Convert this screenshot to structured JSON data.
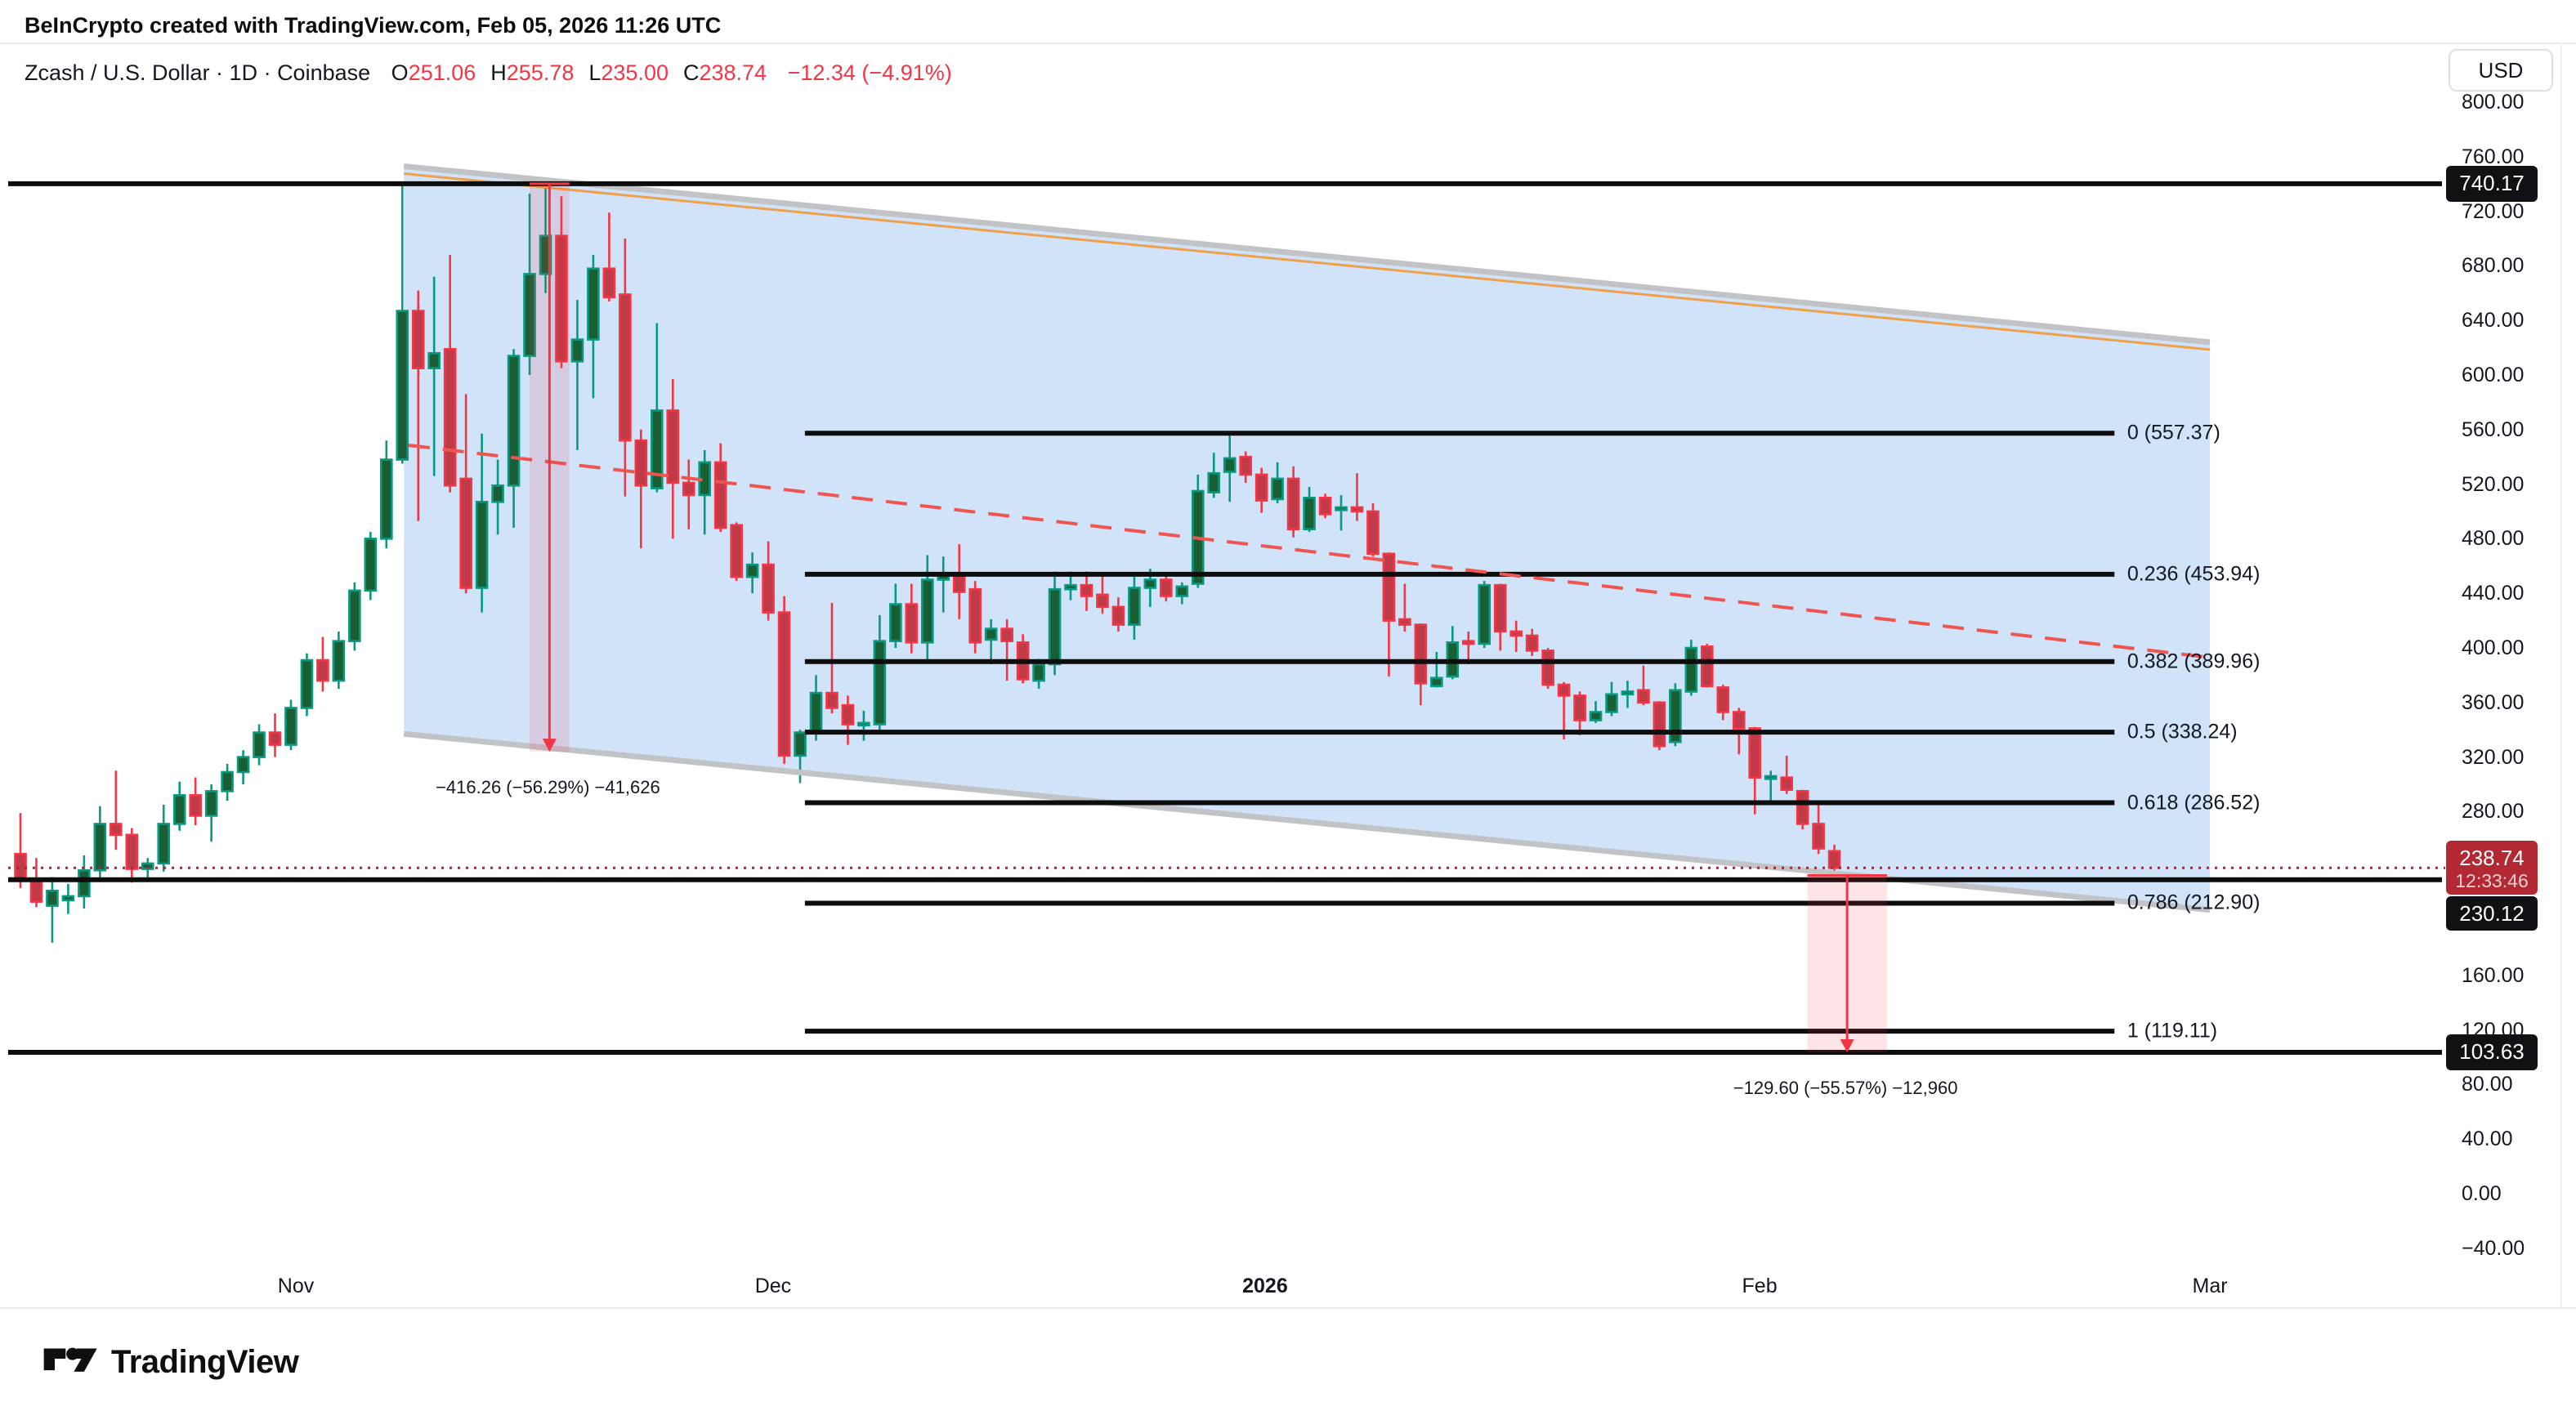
{
  "header": {
    "attribution": "BeInCrypto created with TradingView.com, Feb 05, 2026 11:26 UTC"
  },
  "legend": {
    "symbol_line": "Zcash / U.S. Dollar · 1D · Coinbase",
    "ohlc": [
      {
        "key": "O",
        "value": "251.06"
      },
      {
        "key": "H",
        "value": "255.78"
      },
      {
        "key": "L",
        "value": "235.00"
      },
      {
        "key": "C",
        "value": "238.74"
      }
    ],
    "change": "−12.34 (−4.91%)"
  },
  "toolbar": {
    "currency_label": "USD"
  },
  "price_scale": {
    "ticks": [
      {
        "value": 800,
        "label": "800.00"
      },
      {
        "value": 760,
        "label": "760.00"
      },
      {
        "value": 720,
        "label": "720.00"
      },
      {
        "value": 680,
        "label": "680.00"
      },
      {
        "value": 640,
        "label": "640.00"
      },
      {
        "value": 600,
        "label": "600.00"
      },
      {
        "value": 560,
        "label": "560.00"
      },
      {
        "value": 520,
        "label": "520.00"
      },
      {
        "value": 480,
        "label": "480.00"
      },
      {
        "value": 440,
        "label": "440.00"
      },
      {
        "value": 400,
        "label": "400.00"
      },
      {
        "value": 360,
        "label": "360.00"
      },
      {
        "value": 320,
        "label": "320.00"
      },
      {
        "value": 280,
        "label": "280.00"
      },
      {
        "value": 160,
        "label": "160.00"
      },
      {
        "value": 120,
        "label": "120.00"
      },
      {
        "value": 80,
        "label": "80.00"
      },
      {
        "value": 40,
        "label": "40.00"
      },
      {
        "value": 0,
        "label": "0.00"
      },
      {
        "value": -40,
        "label": "−40.00"
      }
    ],
    "badges": [
      {
        "text": "740.17",
        "price": 740.17,
        "bg": "#101114",
        "height": 44
      },
      {
        "text": "238.74",
        "sub": "12:33:46",
        "price": 238.74,
        "bg": "#b22833",
        "height": 66
      },
      {
        "text": "230.12",
        "price": 230.12,
        "bg": "#101114",
        "height": 42,
        "stack_below": "238.74"
      },
      {
        "text": "103.63",
        "price": 103.63,
        "bg": "#101114",
        "height": 44
      }
    ]
  },
  "time_scale": {
    "labels": [
      {
        "text": "Nov",
        "index": 17.31,
        "bold": false
      },
      {
        "text": "Dec",
        "index": 47.3,
        "bold": false
      },
      {
        "text": "2026",
        "index": 78.22,
        "bold": true
      },
      {
        "text": "Feb",
        "index": 109.3,
        "bold": false
      },
      {
        "text": "Mar",
        "index": 137.6,
        "bold": false
      }
    ]
  },
  "footer": {
    "logo_text": "TradingView"
  },
  "chart_data": {
    "type": "candlestick",
    "title": "Zcash / U.S. Dollar · 1D · Coinbase",
    "ylabel": "USD",
    "ylim": [
      -47,
      839
    ],
    "grid": false,
    "legend_position": "top-left",
    "first_candle_date": "2025-10-15",
    "last_candle_date": "2026-02-05",
    "last_candle_ohlc": {
      "open": 251.06,
      "high": 255.78,
      "low": 235.0,
      "close": 238.74
    },
    "colors": {
      "up_body": "#1a5e33",
      "up_border": "#089981",
      "down_body": "#c13a48",
      "down_border": "#f23645",
      "channel_fill": "rgba(164,199,244,0.50)",
      "channel_border": "#c2c3c7",
      "channel_accent": "#efa04b",
      "trendline": "#f0544f",
      "measure_fill": "rgba(242,54,69,0.13)",
      "measure_arrow": "#f23645",
      "level_line": "#0d0d0d",
      "price_line": "#a1293a"
    },
    "candles": [
      [
        249,
        279,
        224,
        230
      ],
      [
        230,
        246,
        210,
        214
      ],
      [
        211,
        232,
        184,
        222
      ],
      [
        215,
        227,
        205,
        218
      ],
      [
        218,
        248,
        209,
        237
      ],
      [
        237,
        284,
        231,
        271
      ],
      [
        271,
        310,
        252,
        263
      ],
      [
        263,
        268,
        228,
        238
      ],
      [
        238,
        246,
        230,
        242
      ],
      [
        242,
        285,
        236,
        271
      ],
      [
        271,
        302,
        266,
        292
      ],
      [
        292,
        305,
        270,
        277
      ],
      [
        277,
        300,
        258,
        295
      ],
      [
        295,
        315,
        288,
        309
      ],
      [
        309,
        325,
        300,
        320
      ],
      [
        320,
        344,
        314,
        338
      ],
      [
        338,
        352,
        320,
        329
      ],
      [
        329,
        362,
        325,
        356
      ],
      [
        356,
        396,
        350,
        391
      ],
      [
        391,
        408,
        368,
        376
      ],
      [
        376,
        412,
        370,
        405
      ],
      [
        405,
        448,
        398,
        442
      ],
      [
        442,
        485,
        435,
        480
      ],
      [
        480,
        552,
        473,
        538
      ],
      [
        538,
        741,
        535,
        647
      ],
      [
        647,
        662,
        493,
        605
      ],
      [
        605,
        672,
        526,
        616
      ],
      [
        619,
        688,
        514,
        519
      ],
      [
        524,
        586,
        440,
        444
      ],
      [
        444,
        557,
        426,
        507
      ],
      [
        507,
        538,
        483,
        519
      ],
      [
        519,
        619,
        488,
        614
      ],
      [
        614,
        733,
        600,
        674
      ],
      [
        674,
        740,
        660,
        702
      ],
      [
        702,
        731,
        605,
        610
      ],
      [
        610,
        655,
        545,
        626
      ],
      [
        626,
        688,
        583,
        678
      ],
      [
        678,
        719,
        654,
        657
      ],
      [
        659,
        700,
        511,
        552
      ],
      [
        552,
        560,
        473,
        519
      ],
      [
        517,
        638,
        514,
        574
      ],
      [
        574,
        597,
        480,
        521
      ],
      [
        521,
        538,
        487,
        512
      ],
      [
        512,
        545,
        483,
        536
      ],
      [
        536,
        550,
        485,
        488
      ],
      [
        490,
        492,
        449,
        452
      ],
      [
        452,
        470,
        440,
        461
      ],
      [
        461,
        478,
        420,
        426
      ],
      [
        426,
        438,
        315,
        321
      ],
      [
        321,
        340,
        301,
        338
      ],
      [
        338,
        380,
        332,
        367
      ],
      [
        367,
        433,
        352,
        356
      ],
      [
        358,
        365,
        329,
        344
      ],
      [
        344,
        354,
        332,
        345
      ],
      [
        344,
        424,
        340,
        405
      ],
      [
        405,
        447,
        400,
        432
      ],
      [
        432,
        447,
        396,
        404
      ],
      [
        404,
        468,
        391,
        450
      ],
      [
        450,
        467,
        426,
        453
      ],
      [
        453,
        476,
        421,
        441
      ],
      [
        443,
        449,
        396,
        404
      ],
      [
        406,
        421,
        388,
        414
      ],
      [
        414,
        421,
        376,
        405
      ],
      [
        404,
        410,
        374,
        377
      ],
      [
        376,
        392,
        370,
        388
      ],
      [
        388,
        456,
        380,
        443
      ],
      [
        443,
        456,
        435,
        446
      ],
      [
        446,
        456,
        427,
        438
      ],
      [
        439,
        455,
        425,
        430
      ],
      [
        430,
        437,
        412,
        417
      ],
      [
        417,
        452,
        406,
        444
      ],
      [
        444,
        458,
        430,
        450
      ],
      [
        450,
        453,
        434,
        438
      ],
      [
        438,
        448,
        432,
        445
      ],
      [
        447,
        527,
        444,
        515
      ],
      [
        514,
        543,
        510,
        528
      ],
      [
        529,
        556,
        507,
        539
      ],
      [
        540,
        544,
        521,
        527
      ],
      [
        527,
        532,
        499,
        508
      ],
      [
        509,
        536,
        506,
        524
      ],
      [
        524,
        533,
        481,
        487
      ],
      [
        487,
        518,
        485,
        510
      ],
      [
        510,
        513,
        495,
        498
      ],
      [
        501,
        512,
        486,
        503
      ],
      [
        503,
        528,
        493,
        500
      ],
      [
        500,
        506,
        467,
        469
      ],
      [
        469,
        470,
        379,
        420
      ],
      [
        421,
        447,
        412,
        417
      ],
      [
        417,
        418,
        358,
        374
      ],
      [
        372,
        397,
        371,
        378
      ],
      [
        379,
        416,
        377,
        404
      ],
      [
        405,
        412,
        388,
        403
      ],
      [
        403,
        449,
        400,
        446
      ],
      [
        446,
        447,
        398,
        412
      ],
      [
        412,
        420,
        397,
        409
      ],
      [
        409,
        414,
        394,
        398
      ],
      [
        398,
        400,
        370,
        373
      ],
      [
        373,
        375,
        333,
        365
      ],
      [
        365,
        368,
        336,
        347
      ],
      [
        347,
        361,
        345,
        353
      ],
      [
        353,
        375,
        350,
        366
      ],
      [
        366,
        376,
        356,
        368
      ],
      [
        369,
        387,
        358,
        360
      ],
      [
        360,
        361,
        325,
        328
      ],
      [
        331,
        374,
        328,
        369
      ],
      [
        368,
        406,
        365,
        400
      ],
      [
        401,
        403,
        371,
        372
      ],
      [
        371,
        373,
        347,
        353
      ],
      [
        353,
        356,
        322,
        341
      ],
      [
        341,
        342,
        278,
        305
      ],
      [
        304,
        310,
        287,
        306
      ],
      [
        305,
        321,
        293,
        296
      ],
      [
        295,
        296,
        267,
        271
      ],
      [
        271,
        285,
        249,
        253
      ],
      [
        251.06,
        255.78,
        235,
        238.74
      ]
    ],
    "fibonacci": {
      "x_index_range": [
        49.3,
        131.6
      ],
      "label_x_index": 132.4,
      "levels": [
        {
          "text": "0 (557.37)",
          "price": 557.37
        },
        {
          "text": "0.236 (453.94)",
          "price": 453.94
        },
        {
          "text": "0.382 (389.96)",
          "price": 389.96
        },
        {
          "text": "0.5 (338.24)",
          "price": 338.24
        },
        {
          "text": "0.618 (286.52)",
          "price": 286.52
        },
        {
          "text": "0.786 (212.90)",
          "price": 212.9
        },
        {
          "text": "1 (119.11)",
          "price": 119.11
        }
      ]
    },
    "horizontal_lines": [
      {
        "name": "all-time-high",
        "price": 740.17
      },
      {
        "name": "support",
        "price": 230.12
      },
      {
        "name": "target-low",
        "price": 103.63
      }
    ],
    "channel": {
      "top": {
        "from": {
          "index": 24.1,
          "price": 753
        },
        "to": {
          "index": 137.6,
          "price": 624
        }
      },
      "bottom": {
        "from": {
          "index": 24.1,
          "price": 337
        },
        "to": {
          "index": 137.6,
          "price": 208
        }
      }
    },
    "trendline_dashed": {
      "from": {
        "index": 24.4,
        "price": 548.5
      },
      "to": {
        "index": 137.6,
        "price": 393
      }
    },
    "measurements": [
      {
        "label": "−416.26 (−56.29%) −41,626",
        "index_from": 32.0,
        "index_to": 34.5,
        "price_from": 740.17,
        "price_to": 323.91,
        "label_offset_y": 44
      },
      {
        "label": "−129.60 (−55.57%) −12,960",
        "index_from": 112.3,
        "index_to": 117.3,
        "price_from": 233.23,
        "price_to": 103.63,
        "label_offset_y": 44
      }
    ],
    "current_price": {
      "value": 238.74,
      "countdown": "12:33:46"
    }
  }
}
